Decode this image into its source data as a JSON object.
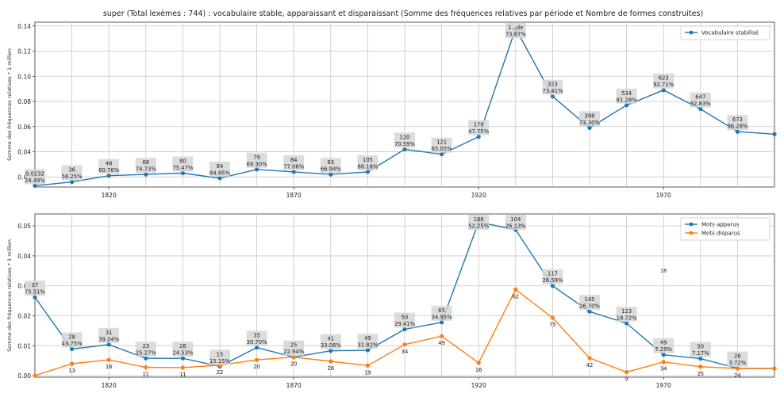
{
  "title": "super (Total lexèmes : 744) : vocabulaire stable, apparaissant et disparaissant (Somme des fréquences relatives par période et Nombre de formes construites)",
  "colors": {
    "blue": "#1f77b4",
    "orange": "#ff7f0e",
    "label_bg": "#d6d6d6",
    "grid": "#c8c8c8"
  },
  "chart_data": [
    {
      "type": "line",
      "xlabel": "",
      "ylabel": "Somme des fréquences relatives * 1 million",
      "x": [
        1800,
        1810,
        1820,
        1830,
        1840,
        1850,
        1860,
        1870,
        1880,
        1890,
        1900,
        1910,
        1920,
        1930,
        1940,
        1950,
        1960,
        1970,
        1980,
        1990,
        2000
      ],
      "xticks": [
        "1820",
        "1870",
        "1920",
        "1970"
      ],
      "yticks": [
        "0.02",
        "0.04",
        "0.06",
        "0.08",
        "0.10",
        "0.12",
        "0.14"
      ],
      "ylim": [
        0.012,
        0.143
      ],
      "legend_position": "top-right",
      "series": [
        {
          "name": "Vocabulaire stabilisé",
          "values": [
            0.013,
            0.016,
            0.021,
            0.022,
            0.023,
            0.019,
            0.026,
            0.024,
            0.022,
            0.024,
            0.042,
            0.038,
            0.052,
            0.138,
            0.084,
            0.059,
            0.077,
            0.089,
            0.074,
            0.056,
            0.054
          ],
          "labels": [
            "0.0232\n24.49%",
            "36\n56.25%",
            "48\n60.76%",
            "68\n74.73%",
            "80\n75.47%",
            "84\n84.85%",
            "79\n69.30%",
            "84\n77.06%",
            "83\n66.94%",
            "105\n68.18%",
            "120\n70.59%",
            "121\n65.05%",
            "170\n47.75%",
            "1...de\n73.87%",
            "323\n73.41%",
            "398\n73.30%",
            "534\n81.28%",
            "623\n92.71%",
            "647\n92.83%",
            "673\n96.28%",
            ""
          ]
        }
      ]
    },
    {
      "type": "line",
      "xlabel": "",
      "ylabel": "Somme des fréquences relatives * 1 million",
      "x": [
        1800,
        1810,
        1820,
        1830,
        1840,
        1850,
        1860,
        1870,
        1880,
        1890,
        1900,
        1910,
        1920,
        1930,
        1940,
        1950,
        1960,
        1970,
        1980,
        1990,
        2000
      ],
      "xticks": [
        "1820",
        "1870",
        "1920",
        "1970"
      ],
      "yticks": [
        "0.00",
        "0.01",
        "0.02",
        "0.03",
        "0.04",
        "0.05"
      ],
      "ylim": [
        -0.0005,
        0.054
      ],
      "legend_position": "top-right",
      "annotations": [
        "18"
      ],
      "series": [
        {
          "name": "Mots apparus",
          "values": [
            0.0262,
            0.0089,
            0.0104,
            0.0058,
            0.0058,
            0.0031,
            0.0094,
            0.0062,
            0.0083,
            0.0085,
            0.0155,
            0.0178,
            0.0513,
            0.0487,
            0.03,
            0.0214,
            0.0175,
            0.007,
            0.0057,
            0.0025,
            0.0024
          ],
          "labels": [
            "37\n75.51%",
            "28\n43.75%",
            "31\n39.24%",
            "23\n25.27%",
            "26\n24.53%",
            "15\n15.15%",
            "35\n30.70%",
            "25\n22.94%",
            "41\n33.06%",
            "49\n31.82%",
            "50\n29.41%",
            "65\n34.95%",
            "186\n52.25%",
            "104\n26.13%",
            "117\n26.59%",
            "145\n26.70%",
            "123\n18.72%",
            "49\n7.29%",
            "50\n7.17%",
            "26\n3.72%",
            ""
          ]
        },
        {
          "name": "Mots disparus",
          "values": [
            0.0,
            0.004,
            0.0053,
            0.0028,
            0.0027,
            0.0035,
            0.0053,
            0.0062,
            0.0048,
            0.0034,
            0.0104,
            0.0132,
            0.0043,
            0.0288,
            0.0193,
            0.0059,
            0.0012,
            0.0046,
            0.003,
            0.0024,
            0.0024
          ],
          "labels": [
            "",
            "13",
            "16",
            "11",
            "11",
            "22",
            "20",
            "20",
            "26",
            "19",
            "34",
            "49",
            "16",
            "62",
            "75",
            "42",
            "9",
            "34",
            "25",
            "24",
            ""
          ]
        }
      ]
    }
  ]
}
